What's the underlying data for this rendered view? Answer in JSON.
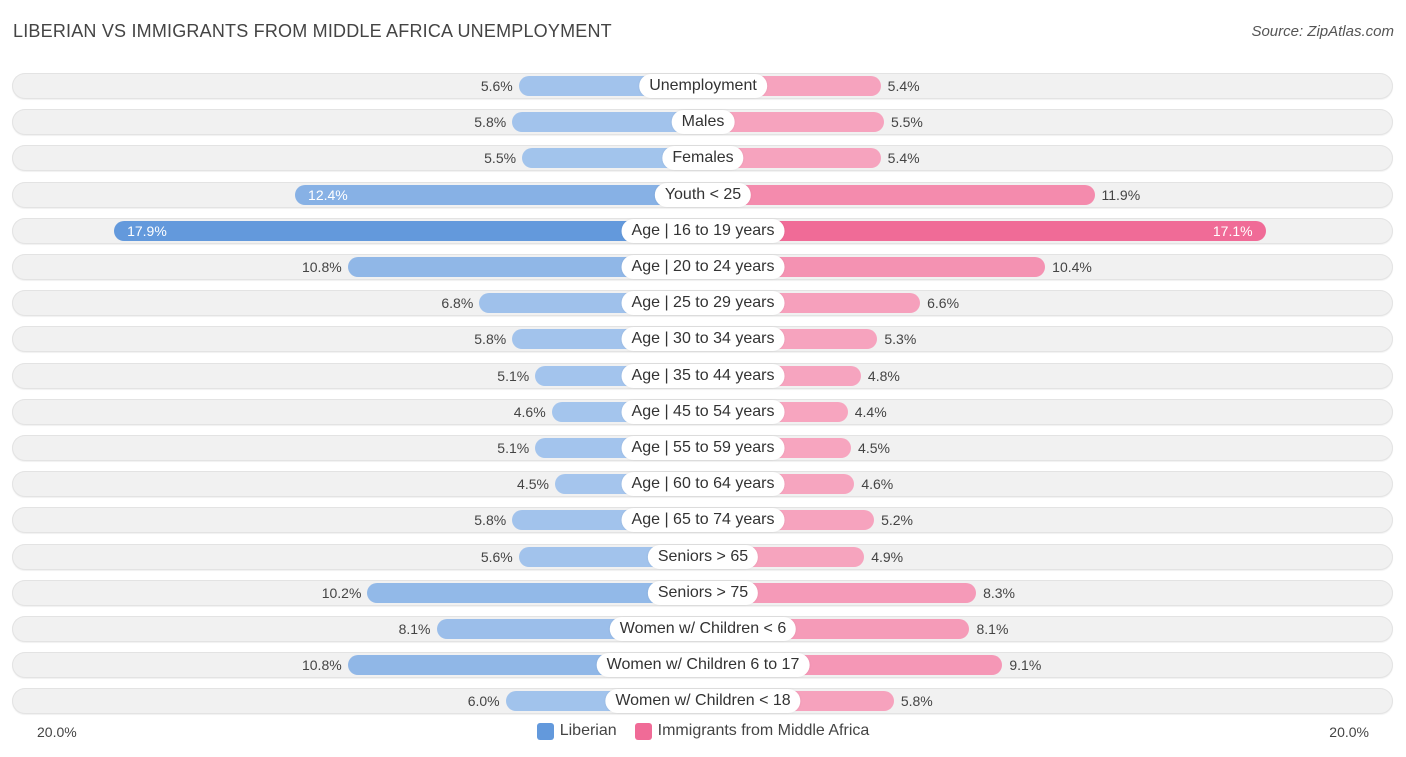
{
  "title": "LIBERIAN VS IMMIGRANTS FROM MIDDLE AFRICA UNEMPLOYMENT",
  "source": "Source: ZipAtlas.com",
  "colors": {
    "liberian_light": "#a9c8ee",
    "liberian_strong": "#6399dc",
    "immigrant_light": "#f7a9c2",
    "immigrant_strong": "#f06b97"
  },
  "chart_data": {
    "type": "bar",
    "orientation": "horizontal-diverging",
    "title": "LIBERIAN VS IMMIGRANTS FROM MIDDLE AFRICA UNEMPLOYMENT",
    "xlim": [
      -20,
      20
    ],
    "axis_left_label": "20.0%",
    "axis_right_label": "20.0%",
    "legend_position": "bottom-center",
    "categories": [
      "Unemployment",
      "Males",
      "Females",
      "Youth < 25",
      "Age | 16 to 19 years",
      "Age | 20 to 24 years",
      "Age | 25 to 29 years",
      "Age | 30 to 34 years",
      "Age | 35 to 44 years",
      "Age | 45 to 54 years",
      "Age | 55 to 59 years",
      "Age | 60 to 64 years",
      "Age | 65 to 74 years",
      "Seniors > 65",
      "Seniors > 75",
      "Women w/ Children < 6",
      "Women w/ Children 6 to 17",
      "Women w/ Children < 18"
    ],
    "series": [
      {
        "name": "Liberian",
        "values": [
          5.6,
          5.8,
          5.5,
          12.4,
          17.9,
          10.8,
          6.8,
          5.8,
          5.1,
          4.6,
          5.1,
          4.5,
          5.8,
          5.6,
          10.2,
          8.1,
          10.8,
          6.0
        ],
        "labels": [
          "5.6%",
          "5.8%",
          "5.5%",
          "12.4%",
          "17.9%",
          "10.8%",
          "6.8%",
          "5.8%",
          "5.1%",
          "4.6%",
          "5.1%",
          "4.5%",
          "5.8%",
          "5.6%",
          "10.2%",
          "8.1%",
          "10.8%",
          "6.0%"
        ]
      },
      {
        "name": "Immigrants from Middle Africa",
        "values": [
          5.4,
          5.5,
          5.4,
          11.9,
          17.1,
          10.4,
          6.6,
          5.3,
          4.8,
          4.4,
          4.5,
          4.6,
          5.2,
          4.9,
          8.3,
          8.1,
          9.1,
          5.8
        ],
        "labels": [
          "5.4%",
          "5.5%",
          "5.4%",
          "11.9%",
          "17.1%",
          "10.4%",
          "6.6%",
          "5.3%",
          "4.8%",
          "4.4%",
          "4.5%",
          "4.6%",
          "5.2%",
          "4.9%",
          "8.3%",
          "8.1%",
          "9.1%",
          "5.8%"
        ]
      }
    ]
  }
}
